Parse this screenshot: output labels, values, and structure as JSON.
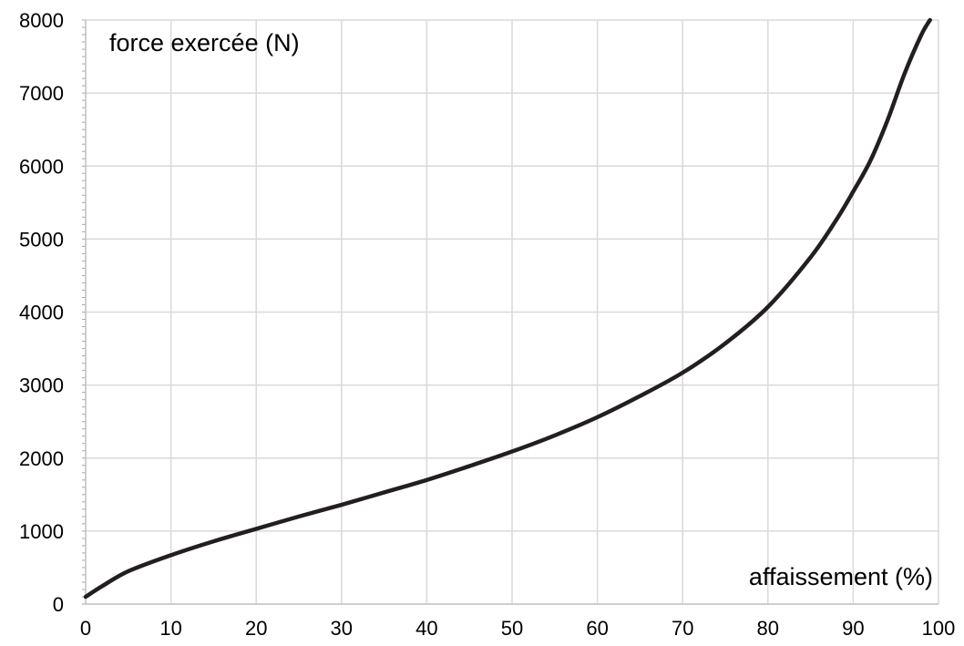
{
  "chart_data": {
    "type": "line",
    "title": "",
    "xlabel": "affaissement (%)",
    "ylabel": "force exercée (N)",
    "xlim": [
      0,
      100
    ],
    "ylim": [
      0,
      8000
    ],
    "x_ticks": [
      0,
      10,
      20,
      30,
      40,
      50,
      60,
      70,
      80,
      90,
      100
    ],
    "y_ticks": [
      0,
      1000,
      2000,
      3000,
      4000,
      5000,
      6000,
      7000,
      8000
    ],
    "x_tick_labels": [
      "0",
      "10",
      "20",
      "30",
      "40",
      "50",
      "60",
      "70",
      "80",
      "90",
      "100"
    ],
    "y_tick_labels": [
      "0",
      "1000",
      "2000",
      "3000",
      "4000",
      "5000",
      "6000",
      "7000",
      "8000"
    ],
    "grid": true,
    "line_color": "#231f20",
    "grid_color": "#d9d9d9",
    "series": [
      {
        "x": [
          0,
          2,
          5,
          10,
          15,
          20,
          25,
          30,
          35,
          40,
          45,
          50,
          55,
          60,
          65,
          70,
          75,
          80,
          85,
          88,
          90,
          92,
          94,
          96,
          98,
          99
        ],
        "y": [
          100,
          250,
          450,
          670,
          860,
          1030,
          1200,
          1360,
          1530,
          1700,
          1890,
          2090,
          2310,
          2560,
          2850,
          3170,
          3570,
          4070,
          4750,
          5260,
          5650,
          6070,
          6620,
          7260,
          7800,
          8000
        ]
      }
    ]
  }
}
